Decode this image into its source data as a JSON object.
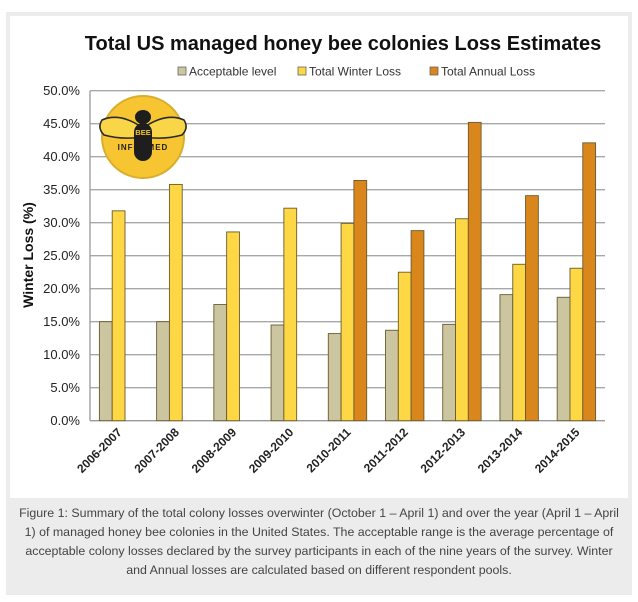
{
  "chart_data": {
    "type": "bar",
    "title": "Total US managed honey bee colonies Loss Estimates",
    "ylabel": "Winter Loss (%)",
    "xlabel": "",
    "ylim": [
      0,
      50
    ],
    "yticks": [
      "0.0%",
      "5.0%",
      "10.0%",
      "15.0%",
      "20.0%",
      "25.0%",
      "30.0%",
      "35.0%",
      "40.0%",
      "45.0%",
      "50.0%"
    ],
    "grid": true,
    "legend_position": "top",
    "categories": [
      "2006-2007",
      "2007-2008",
      "2008-2009",
      "2009-2010",
      "2010-2011",
      "2011-2012",
      "2012-2013",
      "2013-2014",
      "2014-2015"
    ],
    "series": [
      {
        "name": "Acceptable level",
        "color": "#cbc5a0",
        "values": [
          15.0,
          15.0,
          17.6,
          14.5,
          13.2,
          13.7,
          14.6,
          19.1,
          18.7
        ]
      },
      {
        "name": "Total Winter Loss",
        "color": "#fdd744",
        "values": [
          31.8,
          35.8,
          28.6,
          32.2,
          29.9,
          22.5,
          30.6,
          23.7,
          23.1
        ]
      },
      {
        "name": "Total Annual Loss",
        "color": "#d9861c",
        "values": [
          null,
          null,
          null,
          null,
          36.4,
          28.8,
          45.2,
          34.1,
          42.1
        ]
      }
    ]
  },
  "logo": {
    "top_text": "BEE",
    "bottom_text": "INFORMED"
  },
  "caption": "Figure 1: Summary of the total colony losses overwinter (October 1 – April 1) and over the year (April 1 – April 1) of managed honey bee colonies in the United States. The acceptable range is the average percentage of acceptable colony losses declared by the survey participants in each of the nine years of the survey. Winter and Annual losses are calculated based on different respondent pools."
}
